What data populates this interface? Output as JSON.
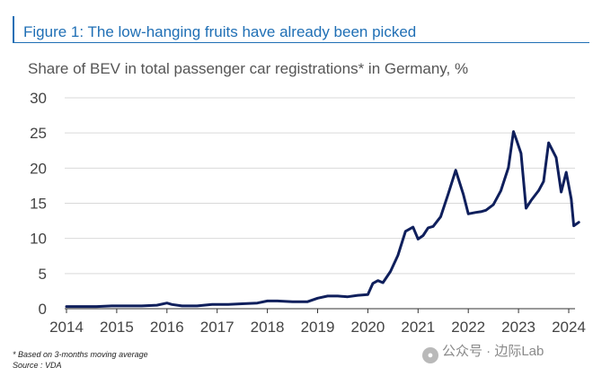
{
  "figure_title": "Figure 1: The low-hanging fruits have already been picked",
  "footnote": "* Based on 3-months moving average",
  "source": "Source : VDA",
  "watermark": {
    "icon": "wechat-icon",
    "text": "公众号 · 边际Lab"
  },
  "colors": {
    "title": "#1f6fb5",
    "line": "#0f1f5c",
    "grid": "#d9d9d9"
  },
  "chart_data": {
    "type": "line",
    "title": "Share of BEV in total passenger car registrations* in Germany, %",
    "xlabel": "",
    "ylabel": "",
    "xlim": [
      2014,
      2024.25
    ],
    "ylim": [
      0,
      30
    ],
    "y_ticks": [
      0,
      5,
      10,
      15,
      20,
      25,
      30
    ],
    "x_ticks": [
      2014,
      2015,
      2016,
      2017,
      2018,
      2019,
      2020,
      2021,
      2022,
      2023,
      2024
    ],
    "grid": true,
    "series": [
      {
        "name": "Share of BEV, %",
        "x": [
          2014.0,
          2014.3,
          2014.6,
          2014.9,
          2015.2,
          2015.5,
          2015.8,
          2016.0,
          2016.1,
          2016.3,
          2016.6,
          2016.9,
          2017.2,
          2017.5,
          2017.8,
          2018.0,
          2018.2,
          2018.5,
          2018.8,
          2019.0,
          2019.2,
          2019.4,
          2019.6,
          2019.8,
          2020.0,
          2020.1,
          2020.2,
          2020.3,
          2020.45,
          2020.6,
          2020.75,
          2020.9,
          2021.0,
          2021.1,
          2021.2,
          2021.3,
          2021.45,
          2021.6,
          2021.75,
          2021.9,
          2022.0,
          2022.15,
          2022.25,
          2022.35,
          2022.5,
          2022.65,
          2022.8,
          2022.9,
          2022.95,
          2023.05,
          2023.15,
          2023.25,
          2023.4,
          2023.5,
          2023.6,
          2023.75,
          2023.85,
          2023.95,
          2024.05,
          2024.1,
          2024.2
        ],
        "values": [
          0.3,
          0.3,
          0.3,
          0.4,
          0.4,
          0.4,
          0.5,
          0.8,
          0.6,
          0.4,
          0.4,
          0.6,
          0.6,
          0.7,
          0.8,
          1.1,
          1.1,
          1.0,
          1.0,
          1.5,
          1.8,
          1.8,
          1.7,
          1.9,
          2.0,
          3.6,
          4.0,
          3.7,
          5.3,
          7.6,
          11.0,
          11.6,
          9.9,
          10.4,
          11.5,
          11.7,
          13.1,
          16.3,
          19.7,
          16.3,
          13.5,
          13.7,
          13.8,
          14.0,
          14.8,
          16.8,
          20.1,
          25.2,
          24.2,
          22.1,
          14.3,
          15.4,
          16.8,
          18.1,
          23.6,
          21.5,
          16.6,
          19.4,
          15.6,
          11.8,
          12.3
        ]
      }
    ]
  }
}
